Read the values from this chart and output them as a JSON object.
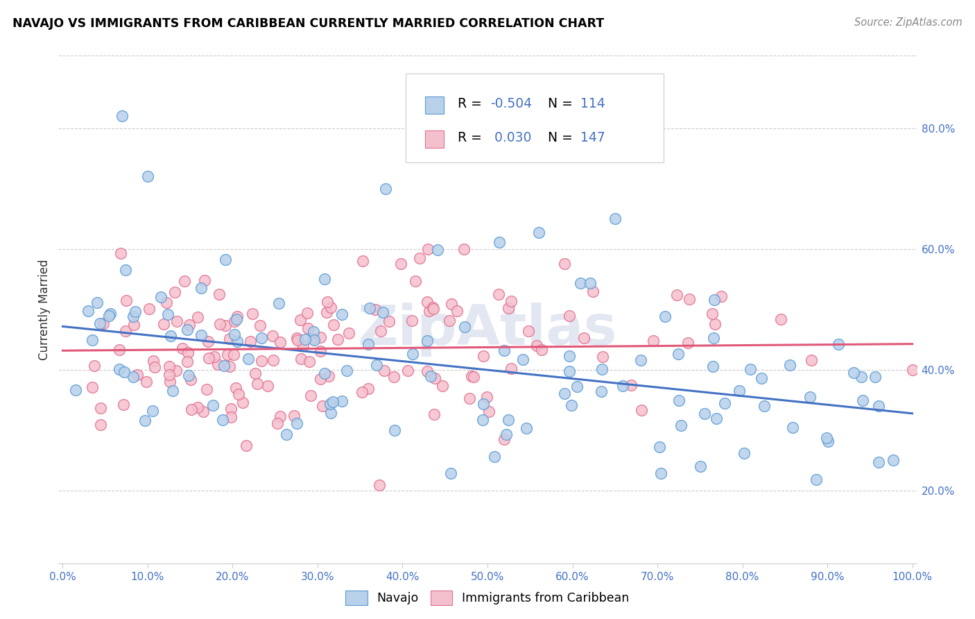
{
  "title": "NAVAJO VS IMMIGRANTS FROM CARIBBEAN CURRENTLY MARRIED CORRELATION CHART",
  "source": "Source: ZipAtlas.com",
  "ylabel": "Currently Married",
  "navajo_R": -0.504,
  "navajo_N": 114,
  "carib_R": 0.03,
  "carib_N": 147,
  "navajo_fill": "#b8d0ea",
  "navajo_edge": "#5b9bd5",
  "carib_fill": "#f5c0ce",
  "carib_edge": "#e07090",
  "navajo_line": "#4472c4",
  "carib_line": "#e05878",
  "watermark": "ZipAtlas",
  "xlim": [
    -0.005,
    1.005
  ],
  "ylim": [
    0.08,
    0.92
  ],
  "x_ticks": [
    0.0,
    0.1,
    0.2,
    0.3,
    0.4,
    0.5,
    0.6,
    0.7,
    0.8,
    0.9,
    1.0
  ],
  "y_ticks_right": [
    0.2,
    0.4,
    0.6,
    0.8
  ],
  "nav_line_x0": 0.0,
  "nav_line_y0": 0.472,
  "nav_line_x1": 1.0,
  "nav_line_y1": 0.328,
  "car_line_x0": 0.0,
  "car_line_y0": 0.432,
  "car_line_x1": 1.0,
  "car_line_y1": 0.443,
  "seed": 42
}
